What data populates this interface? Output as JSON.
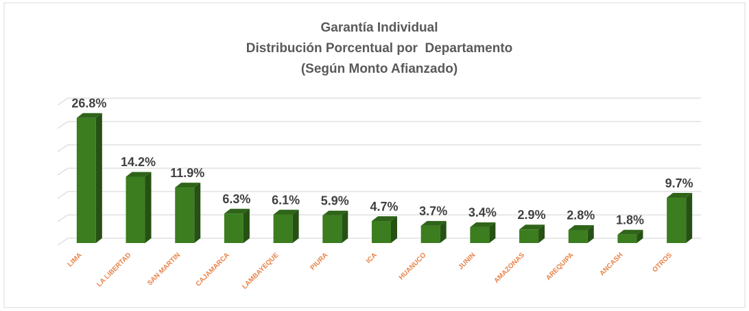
{
  "chart_data": {
    "type": "bar",
    "title": "Garantía Individual",
    "subtitle": [
      "Distribución Porcentual por  Departamento",
      "(Según Monto Afianzado)"
    ],
    "categories": [
      "LIMA",
      "LA LIBERTAD",
      "SAN MARTIN",
      "CAJAMARCA",
      "LAMBAYEQUE",
      "PIURA",
      "ICA",
      "HUANUCO",
      "JUNIN",
      "AMAZONAS",
      "AREQUIPA",
      "ANCASH",
      "OTROS"
    ],
    "values": [
      26.8,
      14.2,
      11.9,
      6.3,
      6.1,
      5.9,
      4.7,
      3.7,
      3.4,
      2.9,
      2.8,
      1.8,
      9.7
    ],
    "value_labels": [
      "26.8%",
      "14.2%",
      "11.9%",
      "6.3%",
      "6.1%",
      "5.9%",
      "4.7%",
      "3.7%",
      "3.4%",
      "2.9%",
      "2.8%",
      "1.8%",
      "9.7%"
    ],
    "color": "#3b7d1f",
    "ylim": [
      0,
      30
    ],
    "yticks": [
      0,
      5,
      10,
      15,
      20,
      25,
      30
    ],
    "grid": true
  }
}
